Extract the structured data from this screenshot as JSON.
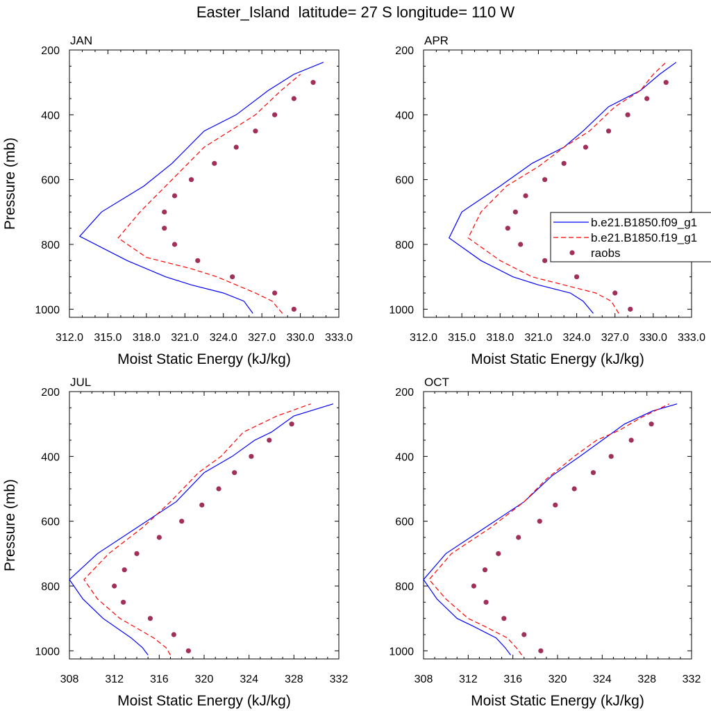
{
  "title": "Easter_Island  latitude= 27 S longitude= 110 W",
  "colors": {
    "model1": "#0000ff",
    "model2": "#ff0000",
    "obs": "#a0305a",
    "axis": "#000000"
  },
  "legend": {
    "entries": [
      {
        "label": "b.e21.B1850.f09_g1",
        "style": "solid",
        "color": "#0000ff"
      },
      {
        "label": "b.e21.B1850.f19_g1",
        "style": "dashed",
        "color": "#ff0000"
      },
      {
        "label": "raobs",
        "style": "marker",
        "color": "#a0305a"
      }
    ],
    "placement": "right of APR panel"
  },
  "chart_data": [
    {
      "type": "line",
      "panel_title": "JAN",
      "xlabel": "Moist Static Energy (kJ/kg)",
      "ylabel": "Pressure (mb)",
      "xlim": [
        312,
        333
      ],
      "xticks": [
        "312.0",
        "315.0",
        "318.0",
        "321.0",
        "324.0",
        "327.0",
        "330.0",
        "333.0"
      ],
      "ylim": [
        200,
        1025
      ],
      "y_inverted": true,
      "yticks": [
        200,
        400,
        600,
        800,
        1000
      ],
      "series": [
        {
          "name": "b.e21.B1850.f09_g1",
          "style": "solid",
          "x": [
            326.3,
            325.6,
            324.0,
            321.5,
            319.5,
            316.5,
            312.8,
            314.5,
            317.8,
            320.0,
            322.5,
            325.0,
            327.5,
            329.5,
            331.8
          ],
          "y": [
            1013,
            975,
            950,
            925,
            900,
            850,
            775,
            700,
            620,
            550,
            450,
            400,
            325,
            275,
            238
          ]
        },
        {
          "name": "b.e21.B1850.f19_g1",
          "style": "dashed",
          "x": [
            328.6,
            327.8,
            326.5,
            323.5,
            321.5,
            318.0,
            315.8,
            317.5,
            320.0,
            322.5,
            324.5,
            326.5,
            328.5,
            330.0
          ],
          "y": [
            1013,
            975,
            950,
            900,
            875,
            840,
            780,
            700,
            600,
            500,
            450,
            400,
            325,
            275
          ]
        },
        {
          "name": "raobs",
          "style": "marker",
          "x": [
            329.5,
            328.0,
            324.7,
            322.0,
            320.2,
            319.4,
            319.4,
            320.2,
            321.5,
            323.3,
            325.0,
            326.5,
            328.0,
            329.5,
            331.0
          ],
          "y": [
            1000,
            950,
            900,
            850,
            800,
            750,
            700,
            650,
            600,
            550,
            500,
            450,
            400,
            350,
            300
          ]
        }
      ]
    },
    {
      "type": "line",
      "panel_title": "APR",
      "xlabel": "Moist Static Energy (kJ/kg)",
      "ylabel": "",
      "xlim": [
        312,
        333
      ],
      "xticks": [
        "312.0",
        "315.0",
        "318.0",
        "321.0",
        "324.0",
        "327.0",
        "330.0",
        "333.0"
      ],
      "ylim": [
        200,
        1025
      ],
      "y_inverted": true,
      "yticks": [
        200,
        400,
        600,
        800,
        1000
      ],
      "series": [
        {
          "name": "b.e21.B1850.f09_g1",
          "style": "solid",
          "x": [
            325.3,
            324.5,
            323.5,
            321.0,
            319.0,
            316.5,
            314.0,
            315.0,
            318.0,
            320.5,
            323.0,
            324.5,
            326.5,
            329.0,
            330.5,
            331.8
          ],
          "y": [
            1013,
            975,
            950,
            925,
            900,
            850,
            780,
            700,
            620,
            550,
            500,
            450,
            375,
            325,
            275,
            238
          ]
        },
        {
          "name": "b.e21.B1850.f19_g1",
          "style": "dashed",
          "x": [
            327.3,
            326.7,
            325.5,
            323.0,
            320.5,
            318.0,
            315.5,
            316.5,
            318.5,
            321.0,
            323.0,
            325.0,
            327.0,
            329.0,
            330.0,
            331.0
          ],
          "y": [
            1013,
            975,
            950,
            925,
            900,
            850,
            780,
            700,
            620,
            560,
            500,
            450,
            375,
            325,
            275,
            238
          ]
        },
        {
          "name": "raobs",
          "style": "marker",
          "x": [
            328.2,
            327.0,
            324.0,
            321.5,
            319.6,
            318.6,
            319.2,
            320.0,
            321.5,
            323.0,
            324.7,
            326.5,
            328.0,
            329.5,
            331.0
          ],
          "y": [
            1000,
            950,
            900,
            850,
            800,
            750,
            700,
            650,
            600,
            550,
            500,
            450,
            400,
            350,
            300
          ]
        }
      ]
    },
    {
      "type": "line",
      "panel_title": "JUL",
      "xlabel": "Moist Static Energy (kJ/kg)",
      "ylabel": "Pressure (mb)",
      "xlim": [
        308,
        332
      ],
      "xticks": [
        "308",
        "312",
        "316",
        "320",
        "324",
        "328",
        "332"
      ],
      "ylim": [
        200,
        1025
      ],
      "y_inverted": true,
      "yticks": [
        200,
        400,
        600,
        800,
        1000
      ],
      "series": [
        {
          "name": "b.e21.B1850.f09_g1",
          "style": "solid",
          "x": [
            315.0,
            314.5,
            313.5,
            311.0,
            309.2,
            308.0,
            310.5,
            314.0,
            317.5,
            320.0,
            322.5,
            324.5,
            326.0,
            328.0,
            331.5
          ],
          "y": [
            1013,
            990,
            960,
            900,
            840,
            780,
            700,
            620,
            540,
            450,
            400,
            350,
            325,
            275,
            238
          ]
        },
        {
          "name": "b.e21.B1850.f19_g1",
          "style": "dashed",
          "x": [
            317.0,
            316.6,
            315.5,
            312.5,
            310.5,
            309.3,
            311.5,
            314.5,
            317.0,
            319.5,
            321.5,
            323.5,
            325.0,
            326.5,
            329.5
          ],
          "y": [
            1013,
            990,
            960,
            900,
            840,
            780,
            700,
            620,
            540,
            450,
            400,
            325,
            300,
            275,
            238
          ]
        },
        {
          "name": "raobs",
          "style": "marker",
          "x": [
            318.6,
            317.3,
            315.2,
            312.8,
            312.0,
            312.9,
            314.0,
            316.0,
            318.0,
            319.8,
            321.3,
            322.7,
            324.2,
            325.8,
            327.8
          ],
          "y": [
            1000,
            950,
            900,
            850,
            800,
            750,
            700,
            650,
            600,
            550,
            500,
            450,
            400,
            350,
            300
          ]
        }
      ]
    },
    {
      "type": "line",
      "panel_title": "OCT",
      "xlabel": "Moist Static Energy (kJ/kg)",
      "ylabel": "",
      "xlim": [
        308,
        332
      ],
      "xticks": [
        "308",
        "312",
        "316",
        "320",
        "324",
        "328",
        "332"
      ],
      "ylim": [
        200,
        1025
      ],
      "y_inverted": true,
      "yticks": [
        200,
        400,
        600,
        800,
        1000
      ],
      "series": [
        {
          "name": "b.e21.B1850.f09_g1",
          "style": "solid",
          "x": [
            315.8,
            315.3,
            314.5,
            312.5,
            311.0,
            309.2,
            308.0,
            310.0,
            313.5,
            317.0,
            319.5,
            322.0,
            324.0,
            326.0,
            328.5,
            330.7
          ],
          "y": [
            1013,
            990,
            960,
            925,
            900,
            840,
            780,
            700,
            620,
            540,
            460,
            400,
            350,
            300,
            260,
            238
          ]
        },
        {
          "name": "b.e21.B1850.f19_g1",
          "style": "dashed",
          "x": [
            316.8,
            316.3,
            315.5,
            313.5,
            312.0,
            310.0,
            308.5,
            310.5,
            314.0,
            317.0,
            319.0,
            321.5,
            323.5,
            325.5,
            327.5,
            330.0
          ],
          "y": [
            1013,
            990,
            960,
            925,
            900,
            840,
            780,
            700,
            620,
            540,
            470,
            400,
            350,
            320,
            280,
            238
          ]
        },
        {
          "name": "raobs",
          "style": "marker",
          "x": [
            318.5,
            317.0,
            315.2,
            313.6,
            312.5,
            313.5,
            314.7,
            316.5,
            318.4,
            319.8,
            321.5,
            323.2,
            324.8,
            326.6,
            328.4
          ],
          "y": [
            1000,
            950,
            900,
            850,
            800,
            750,
            700,
            650,
            600,
            550,
            500,
            450,
            400,
            350,
            300
          ]
        }
      ]
    }
  ]
}
